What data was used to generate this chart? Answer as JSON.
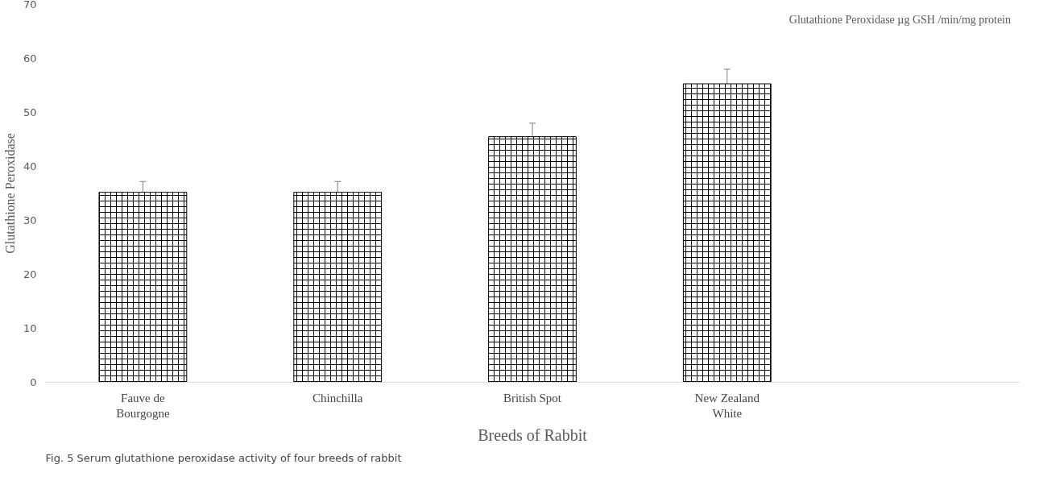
{
  "chart_data": {
    "type": "bar",
    "xlabel": "Breeds of Rabbit",
    "ylabel": "Glutathione Peroxidase",
    "categories": [
      "Fauve de Bourgogne",
      "Chinchilla",
      "British Spot",
      "New Zealand White"
    ],
    "series": [
      {
        "name": "Glutathione Peroxidase µg GSH /min/mg protein",
        "color": "#000000",
        "values": [
          35.2,
          35.2,
          45.5,
          55.3
        ],
        "errors": [
          2,
          2,
          2.5,
          2.7
        ]
      }
    ],
    "ylim": [
      0,
      70
    ],
    "yticks": [
      0,
      10,
      20,
      30,
      40,
      50,
      60,
      70
    ],
    "grid": false,
    "legend": "top right",
    "annotations": [
      "Fig. 5 Serum glutathione peroxidase activity of four breeds of rabbit"
    ]
  }
}
